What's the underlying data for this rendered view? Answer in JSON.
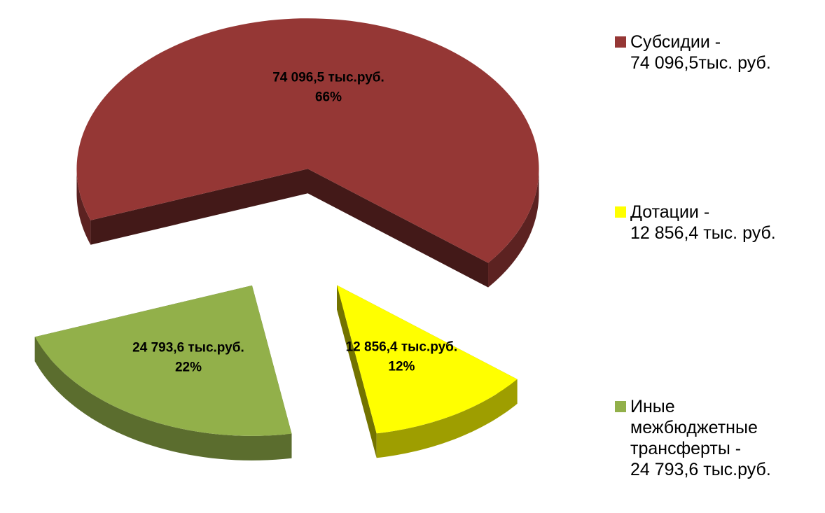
{
  "chart_data": {
    "type": "pie",
    "categories": [
      "Субсидии  -\n74 096,5тыс. руб.",
      "Дотации -\n12 856,4 тыс. руб.",
      "Иные\nмежбюджетные\nтрансферты -\n24 793,6 тыс.руб."
    ],
    "values": [
      74096.5,
      12856.4,
      24793.6
    ],
    "value_labels": [
      "74 096,5  тыс.руб.",
      "12 856,4 тыс.руб.",
      "24 793,6 тыс.руб."
    ],
    "percentages": [
      66,
      12,
      22
    ],
    "percentage_labels": [
      "66%",
      "12%",
      "22%"
    ],
    "colors": [
      "#953735",
      "#ffff00",
      "#92b04a"
    ],
    "exploded": true,
    "legend": "right"
  }
}
